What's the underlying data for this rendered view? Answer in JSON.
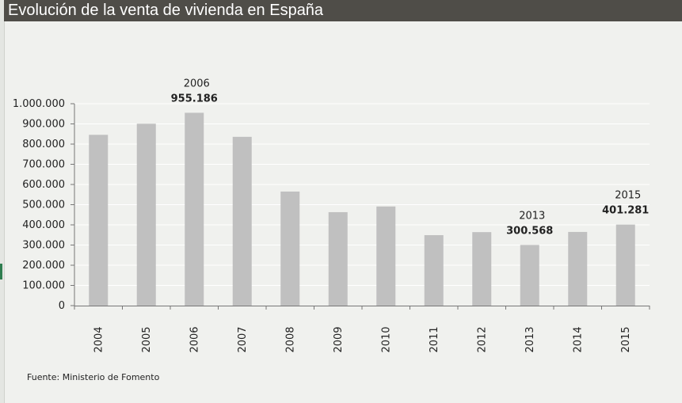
{
  "page": {
    "title": "Evolución de la venta de vivienda en España",
    "source": "Fuente: Ministerio de Fomento"
  },
  "colors": {
    "bar": "#c0c0c0",
    "title_bg": "#4f4d48",
    "background": "#f0f1ee",
    "grid": "#ffffff",
    "axis": "#777777"
  },
  "chart_data": {
    "type": "bar",
    "title": "Evolución de la venta de vivienda en España",
    "xlabel": "",
    "ylabel": "",
    "categories": [
      "2004",
      "2005",
      "2006",
      "2007",
      "2008",
      "2009",
      "2010",
      "2011",
      "2012",
      "2013",
      "2014",
      "2015"
    ],
    "values": [
      846000,
      901000,
      955186,
      836000,
      565000,
      463000,
      491000,
      349000,
      364000,
      300568,
      365000,
      401281
    ],
    "ylim": [
      0,
      1000000
    ],
    "yticks": [
      0,
      100000,
      200000,
      300000,
      400000,
      500000,
      600000,
      700000,
      800000,
      900000,
      1000000
    ],
    "ytick_labels": [
      "0",
      "100.000",
      "200.000",
      "300.000",
      "400.000",
      "500.000",
      "600.000",
      "700.000",
      "800.000",
      "900.000",
      "1.000.000"
    ],
    "grid": true,
    "annotations": [
      {
        "category": "2006",
        "year_label": "2006",
        "value_label": "955.186"
      },
      {
        "category": "2013",
        "year_label": "2013",
        "value_label": "300.568"
      },
      {
        "category": "2015",
        "year_label": "2015",
        "value_label": "401.281"
      }
    ]
  }
}
